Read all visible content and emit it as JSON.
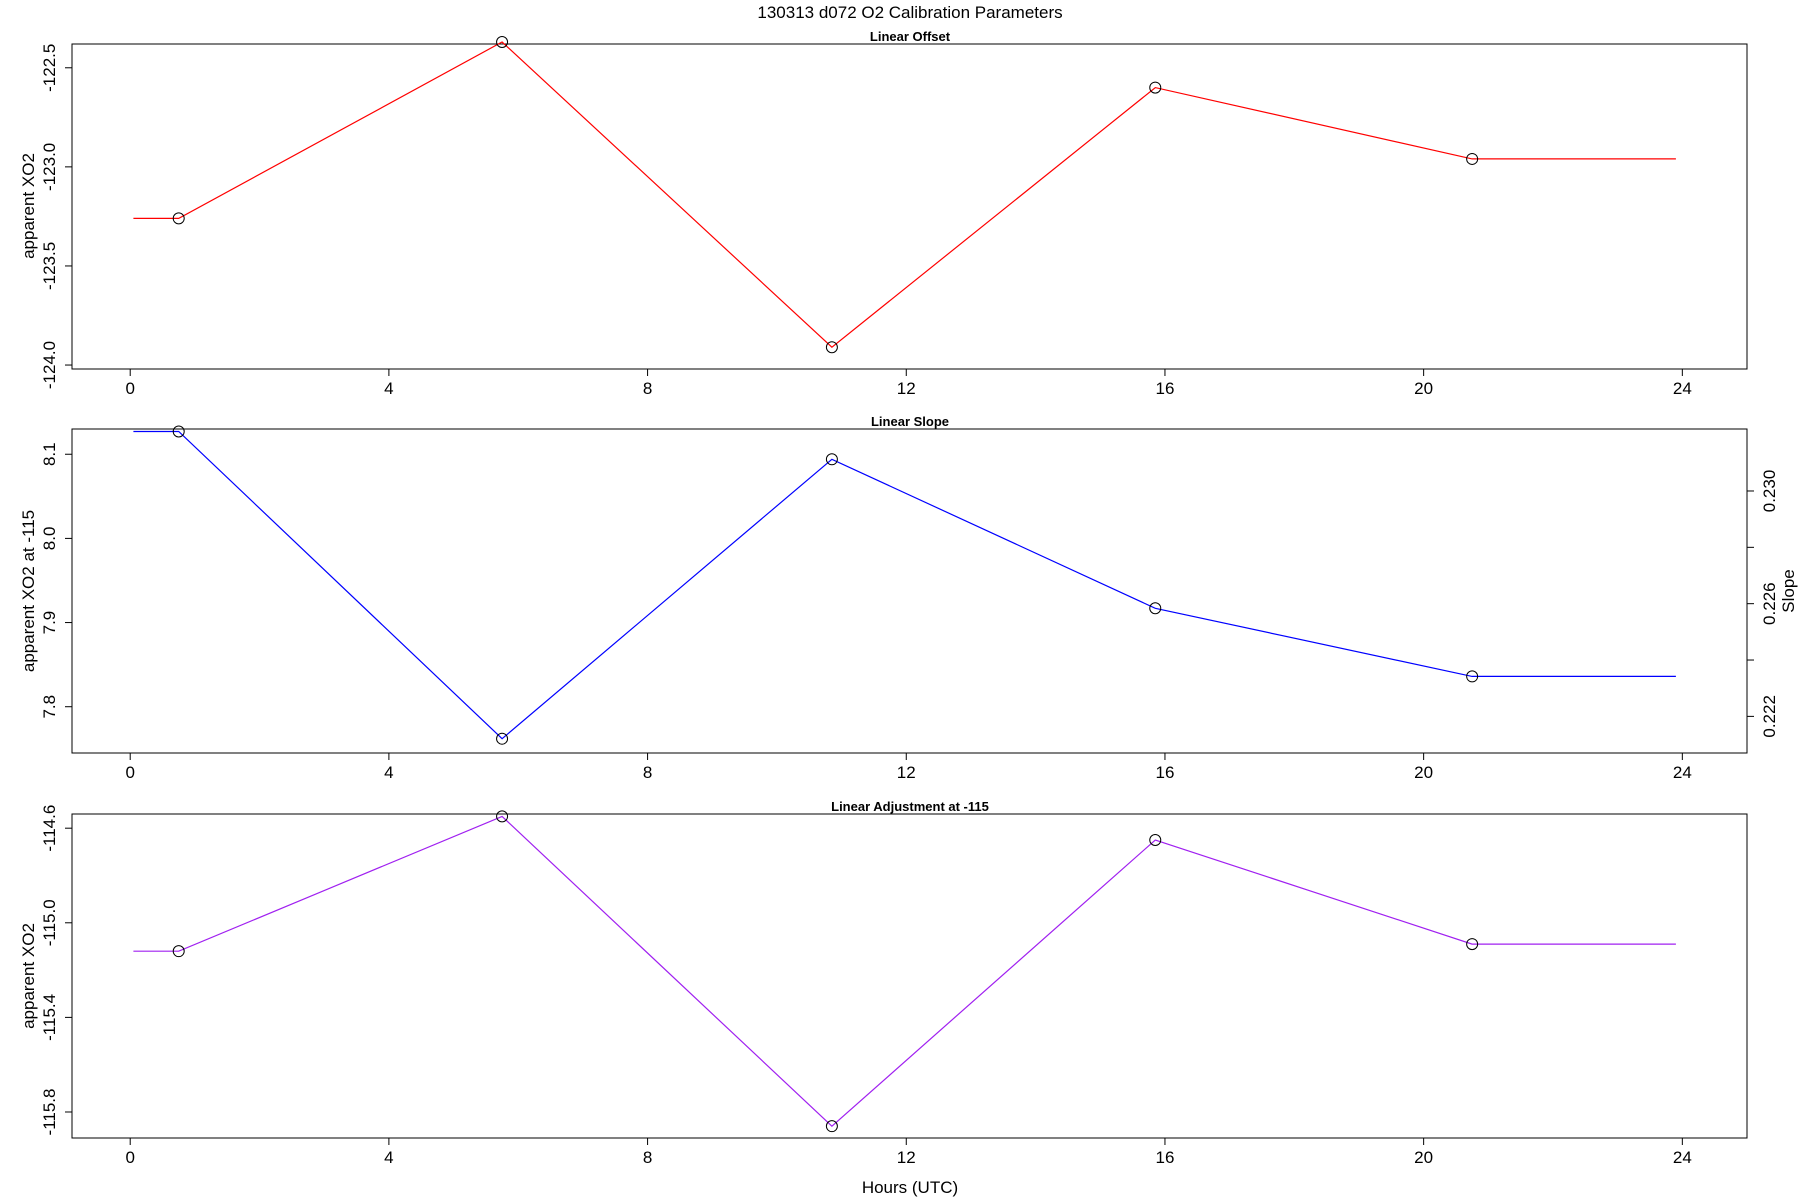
{
  "figure": {
    "title": "130313   d072   O2 Calibration Parameters"
  },
  "colors": {
    "offset_line": "#ff0000",
    "slope_line": "#0000ff",
    "adjust_line": "#a020f0",
    "marker": "#000000"
  },
  "chart_data": [
    {
      "type": "line",
      "title": "Linear Offset",
      "xlabel": "",
      "ylabel": "apparent XO2",
      "xlim": [
        -0.9,
        25.0
      ],
      "ylim": [
        -124.02,
        -122.38
      ],
      "x_ticks": [
        0,
        4,
        8,
        12,
        16,
        20,
        24
      ],
      "y_ticks": [
        -124.0,
        -123.5,
        -123.0,
        -122.5
      ],
      "y_tick_labels": [
        "-124.0",
        "-123.5",
        "-123.0",
        "-122.5"
      ],
      "color": "#ff0000",
      "series": [
        {
          "x": [
            0.05,
            0.75,
            5.75,
            10.85,
            15.85,
            20.75,
            23.9
          ],
          "y": [
            -123.26,
            -123.26,
            -122.37,
            -123.91,
            -122.6,
            -122.96,
            -122.96
          ],
          "markers": [
            false,
            true,
            true,
            true,
            true,
            true,
            false
          ]
        }
      ]
    },
    {
      "type": "line",
      "title": "Linear Slope",
      "xlabel": "",
      "ylabel": "apparent XO2 at -115",
      "ylabel_right": "Slope",
      "xlim": [
        -0.9,
        25.0
      ],
      "ylim": [
        7.745,
        8.13
      ],
      "x_ticks": [
        0,
        4,
        8,
        12,
        16,
        20,
        24
      ],
      "y_ticks": [
        7.8,
        7.9,
        8.0,
        8.1
      ],
      "y_tick_labels": [
        "7.8",
        "7.9",
        "8.0",
        "8.1"
      ],
      "y2_lim": [
        0.2207,
        0.2322
      ],
      "y2_ticks": [
        0.222,
        0.224,
        0.226,
        0.228,
        0.23
      ],
      "y2_tick_labels": [
        "0.222",
        "",
        "0.226",
        "",
        "0.230"
      ],
      "color": "#0000ff",
      "series": [
        {
          "x": [
            0.05,
            0.75,
            5.75,
            10.85,
            15.85,
            20.75,
            23.9
          ],
          "y": [
            8.127,
            8.127,
            7.762,
            8.094,
            7.917,
            7.836,
            7.836
          ],
          "markers": [
            false,
            true,
            true,
            true,
            true,
            true,
            false
          ]
        }
      ]
    },
    {
      "type": "line",
      "title": "Linear Adjustment at -115",
      "xlabel": "Hours (UTC)",
      "ylabel": "apparent XO2",
      "xlim": [
        -0.9,
        25.0
      ],
      "ylim": [
        -115.91,
        -114.54
      ],
      "x_ticks": [
        0,
        4,
        8,
        12,
        16,
        20,
        24
      ],
      "y_ticks": [
        -115.8,
        -115.4,
        -115.0,
        -114.6
      ],
      "y_tick_labels": [
        "-115.8",
        "-115.4",
        "-115.0",
        "-114.6"
      ],
      "color": "#a020f0",
      "series": [
        {
          "x": [
            0.05,
            0.75,
            5.75,
            10.85,
            15.85,
            20.75,
            23.9
          ],
          "y": [
            -115.12,
            -115.12,
            -114.55,
            -115.86,
            -114.65,
            -115.09,
            -115.09
          ],
          "markers": [
            false,
            true,
            true,
            true,
            true,
            true,
            false
          ]
        }
      ]
    }
  ]
}
